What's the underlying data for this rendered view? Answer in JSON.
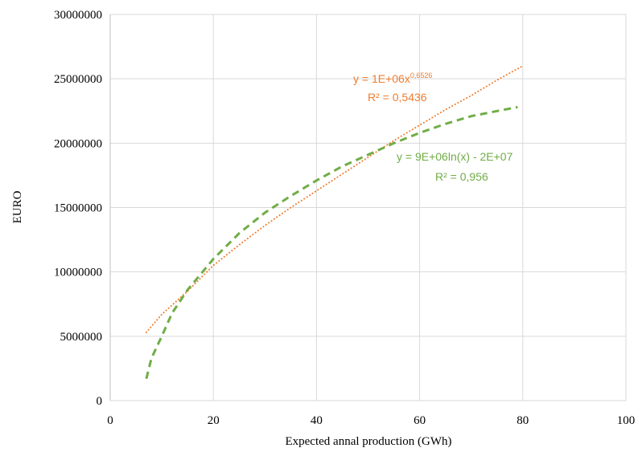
{
  "chart_data": {
    "type": "line",
    "title": "",
    "xlabel": "Expected annal production (GWh)",
    "ylabel": "EURO",
    "xlim": [
      0,
      100
    ],
    "ylim": [
      0,
      30000000
    ],
    "x_ticks": [
      0,
      20,
      40,
      60,
      80,
      100
    ],
    "x_tick_labels": [
      "0",
      "20",
      "40",
      "60",
      "80",
      "100"
    ],
    "y_ticks": [
      0,
      5000000,
      10000000,
      15000000,
      20000000,
      25000000,
      30000000
    ],
    "y_tick_labels": [
      "0",
      "5000000",
      "10000000",
      "15000000",
      "20000000",
      "25000000",
      "30000000"
    ],
    "grid": true,
    "legend": "none",
    "series": [
      {
        "style": "dotted",
        "color": "#ED7D31",
        "x": [
          7,
          10,
          15,
          20,
          25,
          30,
          35,
          40,
          45,
          50,
          55,
          60,
          65,
          70,
          75,
          80
        ],
        "y": [
          5300000,
          6700000,
          8500000,
          10500000,
          12100000,
          13600000,
          15000000,
          16300000,
          17600000,
          18900000,
          20200000,
          21400000,
          22600000,
          23700000,
          24900000,
          26000000
        ]
      },
      {
        "style": "dashed",
        "color": "#70AD47",
        "x": [
          7,
          8,
          10,
          12,
          15,
          20,
          25,
          30,
          35,
          40,
          45,
          50,
          55,
          60,
          65,
          70,
          75,
          79
        ],
        "y": [
          1700000,
          3300000,
          5000000,
          6800000,
          8600000,
          11000000,
          13000000,
          14600000,
          15900000,
          17100000,
          18200000,
          19100000,
          20000000,
          20800000,
          21500000,
          22100000,
          22500000,
          22800000
        ]
      }
    ],
    "annotations": [
      {
        "series": 0,
        "eq_base": "y = 1E+06x",
        "eq_exp": "0,6526",
        "r2": "R² = 0,5436",
        "color": "#ED7D31"
      },
      {
        "series": 1,
        "eq": "y = 9E+06ln(x) - 2E+07",
        "r2": "R² = 0,956",
        "color": "#70AD47"
      }
    ]
  }
}
